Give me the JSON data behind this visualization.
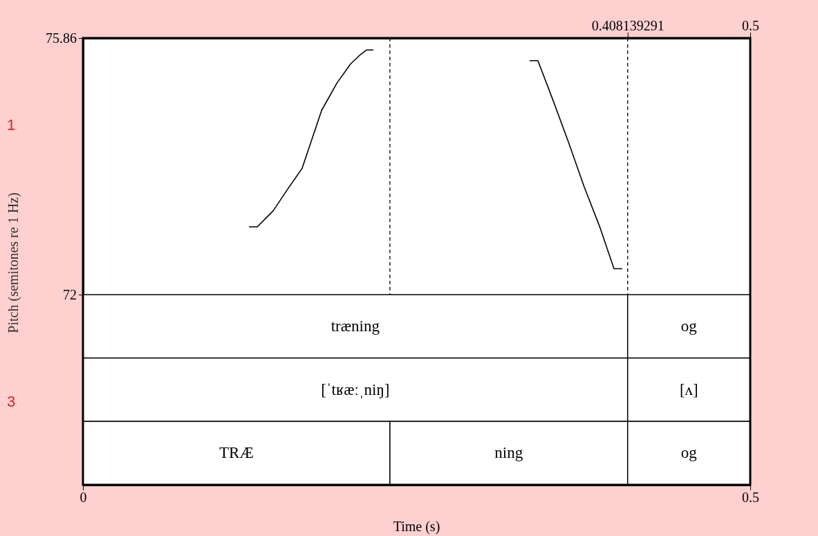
{
  "chart_data": [
    {
      "type": "line",
      "ylabel": "Pitch (semitones re 1 Hz)",
      "xlim": [
        0,
        0.5
      ],
      "ylim": [
        72,
        75.86
      ],
      "yticks": [
        72,
        75.86
      ],
      "x2lim": [
        0,
        0.5
      ],
      "x2ticks": [
        0.408139291,
        0.5
      ],
      "x": [
        0.1244,
        0.1306,
        0.1425,
        0.1528,
        0.1642,
        0.1788,
        0.1902,
        0.2005,
        0.2073,
        0.2124,
        0.2176,
        0.22,
        0.3347,
        0.3409,
        0.3523,
        0.3637,
        0.3756,
        0.3876,
        0.3979,
        0.4041
      ],
      "series": [
        {
          "color": "#000000",
          "values": [
            73.02,
            73.02,
            73.26,
            73.57,
            73.9,
            74.77,
            75.18,
            75.47,
            75.6,
            75.68,
            75.68,
            null,
            75.52,
            75.52,
            74.92,
            74.3,
            73.62,
            73.0,
            72.39,
            72.39
          ]
        }
      ],
      "ref_lines": [
        {
          "axis": "x",
          "value": 0.23,
          "line_style": "dashed"
        },
        {
          "axis": "x",
          "value": 0.408139291,
          "line_style": "dashed"
        }
      ],
      "annotations": [
        "1",
        "3"
      ]
    },
    {
      "type": "bar",
      "orientation": "horizontal",
      "stacked": true,
      "categories": [
        null,
        null,
        null
      ],
      "xlabel": "Time (s)",
      "xlim": [
        0,
        0.5
      ],
      "xticks": [
        0,
        0.5
      ],
      "series": [
        {
          "color": "#ffffff",
          "values": [
            0.408139291,
            0.408139291,
            0.23
          ],
          "value_labels": [
            "træning",
            "[ˈtʁæːˌniŋ]",
            "TRÆ"
          ]
        },
        {
          "color": "#ffffff",
          "values": [
            0.091860709,
            0.091860709,
            0.178139291
          ],
          "value_labels": [
            "og",
            "[ʌ]",
            "ning"
          ]
        },
        {
          "color": "#ffffff",
          "values": [
            null,
            null,
            0.091860709
          ],
          "value_labels": [
            null,
            null,
            "og"
          ]
        }
      ]
    }
  ]
}
